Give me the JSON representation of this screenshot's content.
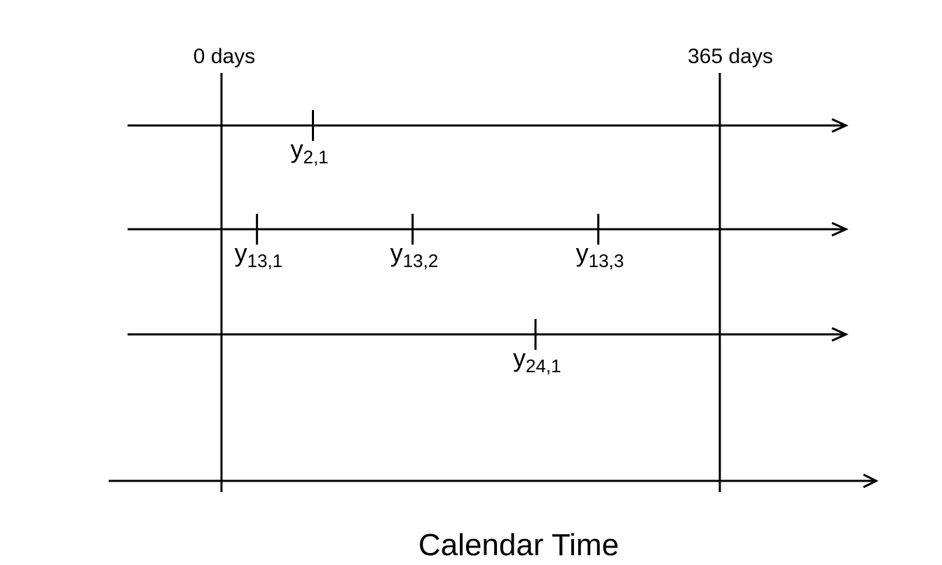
{
  "diagram": {
    "boundary_labels": {
      "start": "0 days",
      "end": "365 days"
    },
    "axis_title": "Calendar Time",
    "timelines": [
      {
        "id": "subject-2",
        "observations": [
          {
            "base": "y",
            "sub": "2,1",
            "day": 67
          }
        ]
      },
      {
        "id": "subject-13",
        "observations": [
          {
            "base": "y",
            "sub": "13,1",
            "day": 26
          },
          {
            "base": "y",
            "sub": "13,2",
            "day": 140
          },
          {
            "base": "y",
            "sub": "13,3",
            "day": 276
          }
        ]
      },
      {
        "id": "subject-24",
        "observations": [
          {
            "base": "y",
            "sub": "24,1",
            "day": 230
          }
        ]
      }
    ]
  }
}
